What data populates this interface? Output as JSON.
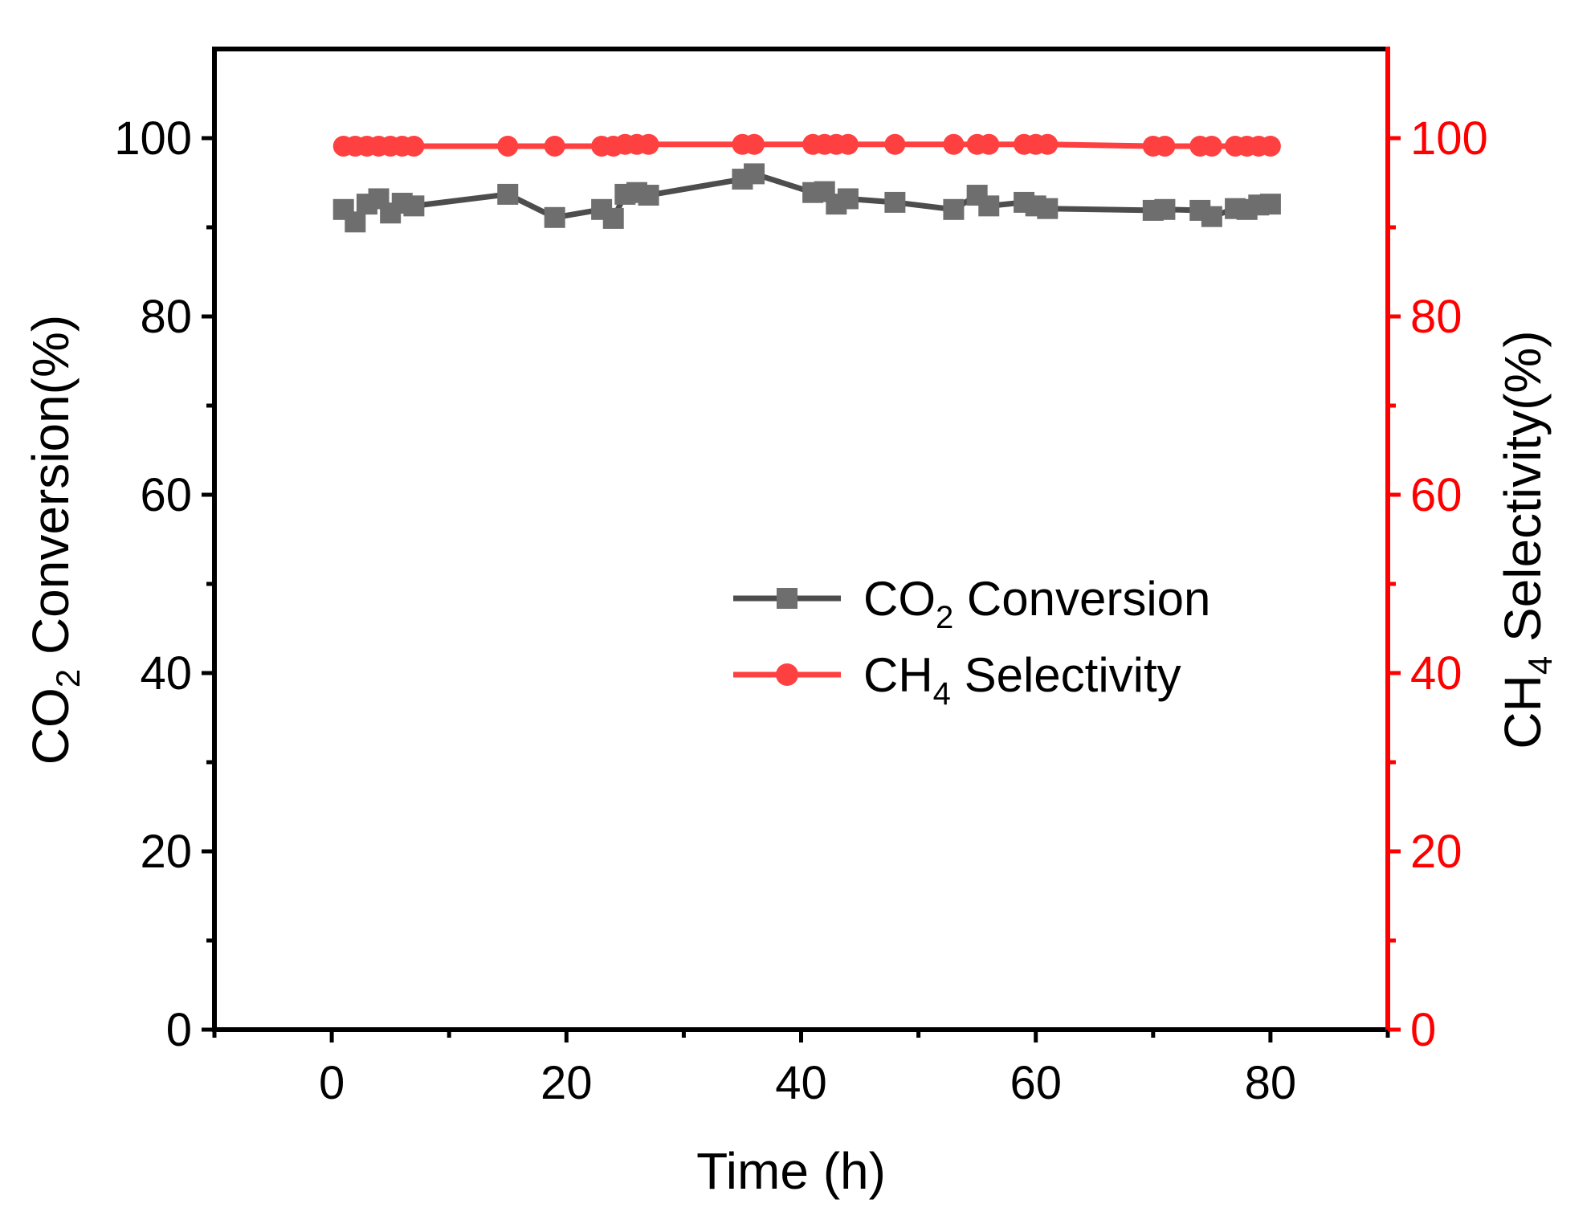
{
  "chart_data": {
    "type": "line",
    "xlabel": "Time (h)",
    "ylabel_left": {
      "pre": "CO",
      "sub": "2",
      "post": " Conversion(%)"
    },
    "ylabel_right": {
      "pre": "CH",
      "sub": "4",
      "post": " Selectivity(%)"
    },
    "xlim": [
      -10,
      90
    ],
    "ylim": [
      0,
      110
    ],
    "y2lim": [
      0,
      110
    ],
    "x_ticks": [
      0,
      20,
      40,
      60,
      80
    ],
    "y_ticks": [
      0,
      20,
      40,
      60,
      80,
      100
    ],
    "y2_ticks": [
      0,
      20,
      40,
      60,
      80,
      100
    ],
    "legend_placement": "center-right",
    "colors": {
      "co2": "#6e6e6e",
      "co2_line": "#4d4d4d",
      "ch4": "#ff4040",
      "right_axis": "#ff0000"
    },
    "x": [
      1,
      2,
      3,
      4,
      5,
      6,
      7,
      15,
      19,
      23,
      24,
      25,
      26,
      27,
      35,
      36,
      41,
      42,
      43,
      44,
      48,
      53,
      55,
      56,
      59,
      60,
      61,
      70,
      71,
      74,
      75,
      77,
      78,
      79,
      80
    ],
    "series": [
      {
        "name": "CO2 Conversion",
        "legend": {
          "pre": "CO",
          "sub": "2",
          "post": " Conversion"
        },
        "axis": "left",
        "marker": "square",
        "values": [
          92.0,
          90.6,
          92.6,
          93.2,
          91.6,
          92.7,
          92.4,
          93.7,
          91.1,
          92.0,
          91.0,
          93.7,
          93.9,
          93.6,
          95.4,
          96.0,
          93.9,
          94.0,
          92.6,
          93.2,
          92.8,
          92.0,
          93.6,
          92.4,
          92.8,
          92.4,
          92.1,
          91.9,
          92.0,
          91.9,
          91.2,
          92.1,
          92.0,
          92.5,
          92.6
        ]
      },
      {
        "name": "CH4 Selectivity",
        "legend": {
          "pre": "CH",
          "sub": "4",
          "post": " Selectivity"
        },
        "axis": "right",
        "marker": "circle",
        "values": [
          99.1,
          99.1,
          99.1,
          99.1,
          99.1,
          99.1,
          99.1,
          99.1,
          99.1,
          99.1,
          99.1,
          99.3,
          99.3,
          99.3,
          99.3,
          99.3,
          99.3,
          99.3,
          99.3,
          99.3,
          99.3,
          99.3,
          99.3,
          99.3,
          99.3,
          99.3,
          99.3,
          99.1,
          99.1,
          99.1,
          99.1,
          99.1,
          99.1,
          99.1,
          99.1
        ]
      }
    ]
  }
}
